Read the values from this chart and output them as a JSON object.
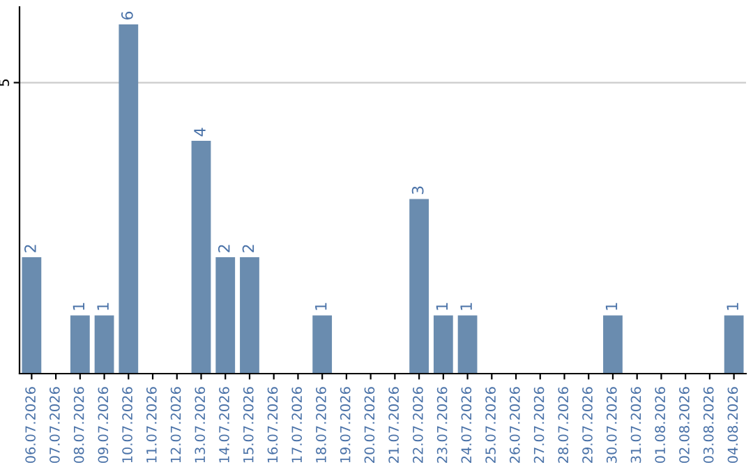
{
  "chart_data": {
    "type": "bar",
    "categories": [
      "06.07.2026",
      "07.07.2026",
      "08.07.2026",
      "09.07.2026",
      "10.07.2026",
      "11.07.2026",
      "12.07.2026",
      "13.07.2026",
      "14.07.2026",
      "15.07.2026",
      "16.07.2026",
      "17.07.2026",
      "18.07.2026",
      "19.07.2026",
      "20.07.2026",
      "21.07.2026",
      "22.07.2026",
      "23.07.2026",
      "24.07.2026",
      "25.07.2026",
      "26.07.2026",
      "27.07.2026",
      "28.07.2026",
      "29.07.2026",
      "30.07.2026",
      "31.07.2026",
      "01.08.2026",
      "02.08.2026",
      "03.08.2026",
      "04.08.2026"
    ],
    "values": [
      2,
      0,
      1,
      1,
      6,
      0,
      0,
      4,
      2,
      2,
      0,
      0,
      1,
      0,
      0,
      0,
      3,
      1,
      1,
      0,
      0,
      0,
      0,
      0,
      1,
      0,
      0,
      0,
      0,
      1
    ],
    "value_labels": [
      "2",
      null,
      "1",
      "1",
      "6",
      null,
      null,
      "4",
      "2",
      "2",
      null,
      null,
      "1",
      null,
      null,
      null,
      "3",
      "1",
      "1",
      null,
      null,
      null,
      null,
      null,
      "1",
      null,
      null,
      null,
      null,
      "1"
    ],
    "color": "#6a8caf",
    "ylim": [
      0,
      6.3
    ],
    "yticks": [
      5
    ],
    "grid": "y"
  }
}
